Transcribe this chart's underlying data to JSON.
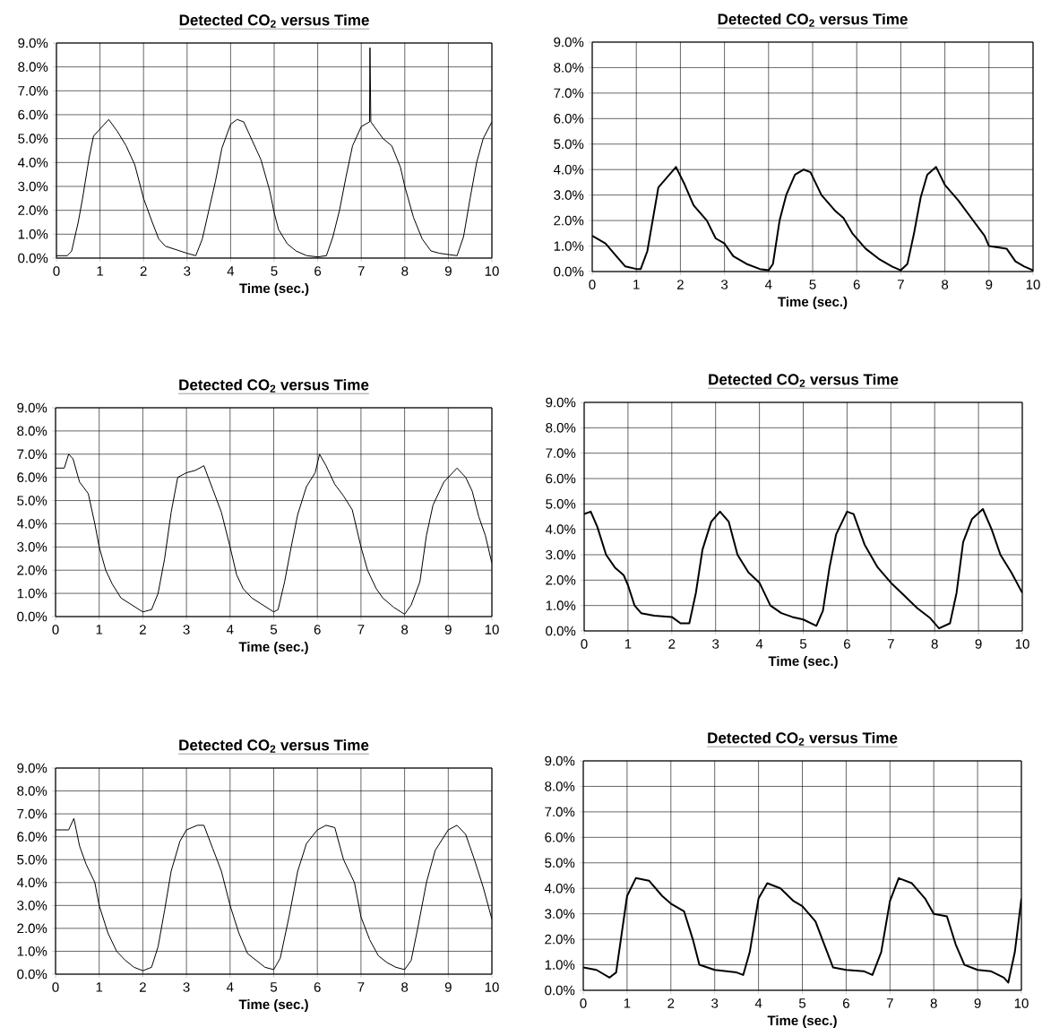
{
  "chart_data": [
    {
      "type": "line",
      "title": "Detected CO$_{2}$ versus Time",
      "xlabel": "Time (sec.)",
      "xlim": [
        0,
        10
      ],
      "ylim": [
        0,
        9
      ],
      "xticks": [
        0,
        1,
        2,
        3,
        4,
        5,
        6,
        7,
        8,
        9,
        10
      ],
      "yticks": [
        {
          "value": 0,
          "label": "0.0%"
        },
        {
          "value": 1,
          "label": "1.0%"
        },
        {
          "value": 2,
          "label": "2.0%"
        },
        {
          "value": 3,
          "label": "3.0%"
        },
        {
          "value": 4,
          "label": "4.0%"
        },
        {
          "value": 5,
          "label": "5.0%"
        },
        {
          "value": 6,
          "label": "6.0%"
        },
        {
          "value": 7,
          "label": "7.0%"
        },
        {
          "value": 8,
          "label": "8.0%"
        },
        {
          "value": 9,
          "label": "9.0%"
        }
      ],
      "grid": true,
      "x": [
        0,
        0.25,
        0.35,
        0.5,
        0.6,
        0.75,
        0.85,
        1,
        1.2,
        1.4,
        1.6,
        1.8,
        2,
        2.2,
        2.35,
        2.5,
        2.75,
        3,
        3.2,
        3.35,
        3.5,
        3.65,
        3.8,
        4,
        4.15,
        4.3,
        4.5,
        4.7,
        4.9,
        5,
        5.1,
        5.3,
        5.5,
        5.75,
        6,
        6.2,
        6.35,
        6.5,
        6.65,
        6.8,
        7,
        7.19,
        7.2,
        7.22,
        7.5,
        7.7,
        7.9,
        8,
        8.2,
        8.4,
        8.6,
        8.8,
        9,
        9.2,
        9.35,
        9.5,
        9.65,
        9.8,
        10
      ],
      "series": [
        {
          "color": "#000000",
          "values": [
            0.1,
            0.1,
            0.3,
            1.5,
            2.5,
            4.2,
            5.1,
            5.4,
            5.8,
            5.3,
            4.7,
            3.9,
            2.5,
            1.5,
            0.8,
            0.5,
            0.35,
            0.2,
            0.1,
            0.8,
            2,
            3.2,
            4.6,
            5.6,
            5.8,
            5.7,
            4.9,
            4.1,
            2.8,
            1.9,
            1.2,
            0.6,
            0.3,
            0.1,
            0.05,
            0.1,
            0.9,
            2,
            3.4,
            4.7,
            5.5,
            5.7,
            8.8,
            5.7,
            5,
            4.7,
            3.8,
            3,
            1.7,
            0.8,
            0.3,
            0.2,
            0.15,
            0.1,
            0.9,
            2.5,
            4,
            5,
            5.7
          ]
        }
      ]
    },
    {
      "type": "line",
      "title": "Detected CO$_{2}$ versus Time",
      "xlabel": "Time (sec.)",
      "xlim": [
        0,
        10
      ],
      "ylim": [
        0,
        9
      ],
      "xticks": [
        0,
        1,
        2,
        3,
        4,
        5,
        6,
        7,
        8,
        9,
        10
      ],
      "yticks": [
        {
          "value": 0,
          "label": "0.0%"
        },
        {
          "value": 1,
          "label": "1.0%"
        },
        {
          "value": 2,
          "label": "2.0%"
        },
        {
          "value": 3,
          "label": "3.0%"
        },
        {
          "value": 4,
          "label": "4.0%"
        },
        {
          "value": 5,
          "label": "5.0%"
        },
        {
          "value": 6,
          "label": "6.0%"
        },
        {
          "value": 7,
          "label": "7.0%"
        },
        {
          "value": 8,
          "label": "8.0%"
        },
        {
          "value": 9,
          "label": "9.0%"
        }
      ],
      "grid": true,
      "x": [
        0,
        0.3,
        0.5,
        0.75,
        1,
        1.1,
        1.25,
        1.4,
        1.5,
        1.7,
        1.9,
        2.1,
        2.3,
        2.6,
        2.8,
        3,
        3.2,
        3.5,
        3.8,
        4,
        4.1,
        4.25,
        4.4,
        4.6,
        4.8,
        4.95,
        5.2,
        5.5,
        5.7,
        5.9,
        6.2,
        6.5,
        6.8,
        7,
        7.15,
        7.3,
        7.45,
        7.6,
        7.8,
        8,
        8.3,
        8.6,
        8.9,
        9,
        9.4,
        9.6,
        9.8,
        10
      ],
      "series": [
        {
          "color": "#000000",
          "values": [
            1.4,
            1.1,
            0.7,
            0.2,
            0.1,
            0.1,
            0.8,
            2.3,
            3.3,
            3.7,
            4.1,
            3.4,
            2.6,
            2,
            1.3,
            1.1,
            0.6,
            0.3,
            0.1,
            0.05,
            0.3,
            2,
            3,
            3.8,
            4,
            3.9,
            3,
            2.4,
            2.1,
            1.5,
            0.9,
            0.5,
            0.2,
            0.05,
            0.3,
            1.5,
            2.9,
            3.8,
            4.1,
            3.4,
            2.8,
            2.1,
            1.4,
            1,
            0.9,
            0.4,
            0.2,
            0.05
          ]
        }
      ]
    },
    {
      "type": "line",
      "title": "Detected CO$_{2}$ versus Time",
      "xlabel": "Time (sec.)",
      "xlim": [
        0,
        10
      ],
      "ylim": [
        0,
        9
      ],
      "xticks": [
        0,
        1,
        2,
        3,
        4,
        5,
        6,
        7,
        8,
        9,
        10
      ],
      "yticks": [
        {
          "value": 0,
          "label": "0.0%"
        },
        {
          "value": 1,
          "label": "1.0%"
        },
        {
          "value": 2,
          "label": "2.0%"
        },
        {
          "value": 3,
          "label": "3.0%"
        },
        {
          "value": 4,
          "label": "4.0%"
        },
        {
          "value": 5,
          "label": "5.0%"
        },
        {
          "value": 6,
          "label": "6.0%"
        },
        {
          "value": 7,
          "label": "7.0%"
        },
        {
          "value": 8,
          "label": "8.0%"
        },
        {
          "value": 9,
          "label": "9.0%"
        }
      ],
      "grid": true,
      "x": [
        0,
        0.2,
        0.3,
        0.4,
        0.55,
        0.75,
        0.9,
        1,
        1.15,
        1.3,
        1.5,
        1.75,
        2,
        2.2,
        2.35,
        2.5,
        2.65,
        2.8,
        3,
        3.2,
        3.4,
        3.6,
        3.8,
        4,
        4.15,
        4.3,
        4.5,
        4.75,
        5,
        5.1,
        5.25,
        5.4,
        5.55,
        5.75,
        5.95,
        6.05,
        6.2,
        6.4,
        6.6,
        6.8,
        7,
        7.15,
        7.35,
        7.5,
        7.75,
        8,
        8.15,
        8.35,
        8.5,
        8.65,
        8.9,
        9.2,
        9.4,
        9.55,
        9.7,
        9.85,
        10
      ],
      "series": [
        {
          "color": "#000000",
          "values": [
            6.4,
            6.4,
            7,
            6.8,
            5.8,
            5.3,
            4,
            3,
            2,
            1.4,
            0.8,
            0.5,
            0.2,
            0.3,
            1,
            2.5,
            4.5,
            6,
            6.2,
            6.3,
            6.5,
            5.5,
            4.5,
            3,
            1.8,
            1.2,
            0.8,
            0.5,
            0.2,
            0.3,
            1.5,
            3,
            4.4,
            5.6,
            6.2,
            7,
            6.5,
            5.7,
            5.2,
            4.6,
            3,
            2,
            1.2,
            0.8,
            0.4,
            0.1,
            0.5,
            1.5,
            3.5,
            4.8,
            5.8,
            6.4,
            6,
            5.4,
            4.3,
            3.5,
            2.3
          ]
        }
      ]
    },
    {
      "type": "line",
      "title": "Detected CO$_{2}$ versus Time",
      "xlabel": "Time (sec.)",
      "xlim": [
        0,
        10
      ],
      "ylim": [
        0,
        9
      ],
      "xticks": [
        0,
        1,
        2,
        3,
        4,
        5,
        6,
        7,
        8,
        9,
        10
      ],
      "yticks": [
        {
          "value": 0,
          "label": "0.0%"
        },
        {
          "value": 1,
          "label": "1.0%"
        },
        {
          "value": 2,
          "label": "2.0%"
        },
        {
          "value": 3,
          "label": "3.0%"
        },
        {
          "value": 4,
          "label": "4.0%"
        },
        {
          "value": 5,
          "label": "5.0%"
        },
        {
          "value": 6,
          "label": "6.0%"
        },
        {
          "value": 7,
          "label": "7.0%"
        },
        {
          "value": 8,
          "label": "8.0%"
        },
        {
          "value": 9,
          "label": "9.0%"
        }
      ],
      "grid": true,
      "x": [
        0,
        0.15,
        0.3,
        0.5,
        0.7,
        0.9,
        1,
        1.15,
        1.3,
        1.6,
        2,
        2.2,
        2.4,
        2.55,
        2.7,
        2.9,
        3.1,
        3.3,
        3.5,
        3.75,
        4,
        4.25,
        4.5,
        4.75,
        5,
        5.3,
        5.45,
        5.6,
        5.75,
        6,
        6.15,
        6.4,
        6.7,
        7,
        7.3,
        7.6,
        7.9,
        8.1,
        8.35,
        8.5,
        8.65,
        8.85,
        9.1,
        9.3,
        9.5,
        9.75,
        10
      ],
      "series": [
        {
          "color": "#000000",
          "values": [
            4.6,
            4.7,
            4.1,
            3,
            2.5,
            2.2,
            1.8,
            1,
            0.7,
            0.6,
            0.55,
            0.3,
            0.3,
            1.5,
            3.2,
            4.3,
            4.7,
            4.3,
            3,
            2.3,
            1.9,
            1,
            0.7,
            0.55,
            0.45,
            0.2,
            0.8,
            2.5,
            3.8,
            4.7,
            4.6,
            3.4,
            2.5,
            1.9,
            1.4,
            0.9,
            0.5,
            0.1,
            0.3,
            1.5,
            3.5,
            4.4,
            4.8,
            4,
            3,
            2.3,
            1.5
          ]
        }
      ]
    },
    {
      "type": "line",
      "title": "Detected CO$_{2}$ versus Time",
      "xlabel": "Time (sec.)",
      "xlim": [
        0,
        10
      ],
      "ylim": [
        0,
        9
      ],
      "xticks": [
        0,
        1,
        2,
        3,
        4,
        5,
        6,
        7,
        8,
        9,
        10
      ],
      "yticks": [
        {
          "value": 0,
          "label": "0.0%"
        },
        {
          "value": 1,
          "label": "1.0%"
        },
        {
          "value": 2,
          "label": "2.0%"
        },
        {
          "value": 3,
          "label": "3.0%"
        },
        {
          "value": 4,
          "label": "4.0%"
        },
        {
          "value": 5,
          "label": "5.0%"
        },
        {
          "value": 6,
          "label": "6.0%"
        },
        {
          "value": 7,
          "label": "7.0%"
        },
        {
          "value": 8,
          "label": "8.0%"
        },
        {
          "value": 9,
          "label": "9.0%"
        }
      ],
      "grid": true,
      "x": [
        0,
        0.3,
        0.42,
        0.55,
        0.7,
        0.9,
        1,
        1.2,
        1.4,
        1.6,
        1.8,
        2,
        2.2,
        2.35,
        2.5,
        2.65,
        2.85,
        3,
        3.25,
        3.4,
        3.6,
        3.8,
        4,
        4.2,
        4.4,
        4.6,
        4.8,
        5,
        5.15,
        5.35,
        5.55,
        5.75,
        6,
        6.2,
        6.4,
        6.6,
        6.85,
        7,
        7.2,
        7.4,
        7.6,
        7.8,
        8,
        8.15,
        8.3,
        8.5,
        8.7,
        9,
        9.2,
        9.4,
        9.6,
        9.8,
        10
      ],
      "series": [
        {
          "color": "#000000",
          "values": [
            6.3,
            6.3,
            6.8,
            5.6,
            4.8,
            4,
            3,
            1.8,
            1,
            0.6,
            0.3,
            0.15,
            0.3,
            1.2,
            2.8,
            4.5,
            5.8,
            6.3,
            6.5,
            6.5,
            5.5,
            4.5,
            3,
            1.8,
            0.9,
            0.6,
            0.3,
            0.2,
            0.7,
            2.5,
            4.5,
            5.7,
            6.3,
            6.5,
            6.4,
            5,
            4,
            2.5,
            1.5,
            0.8,
            0.5,
            0.3,
            0.2,
            0.6,
            2,
            4,
            5.4,
            6.3,
            6.5,
            6.1,
            5,
            3.8,
            2.4
          ]
        }
      ]
    },
    {
      "type": "line",
      "title": "Detected CO$_{2}$ versus Time",
      "xlabel": "Time (sec.)",
      "xlim": [
        0,
        10
      ],
      "ylim": [
        0,
        9
      ],
      "xticks": [
        0,
        1,
        2,
        3,
        4,
        5,
        6,
        7,
        8,
        9,
        10
      ],
      "yticks": [
        {
          "value": 0,
          "label": "0.0%"
        },
        {
          "value": 1,
          "label": "1.0%"
        },
        {
          "value": 2,
          "label": "2.0%"
        },
        {
          "value": 3,
          "label": "3.0%"
        },
        {
          "value": 4,
          "label": "4.0%"
        },
        {
          "value": 5,
          "label": "5.0%"
        },
        {
          "value": 6,
          "label": "6.0%"
        },
        {
          "value": 7,
          "label": "7.0%"
        },
        {
          "value": 8,
          "label": "8.0%"
        },
        {
          "value": 9,
          "label": "9.0%"
        }
      ],
      "grid": true,
      "x": [
        0,
        0.3,
        0.6,
        0.75,
        0.9,
        1,
        1.2,
        1.5,
        1.8,
        2,
        2.3,
        2.5,
        2.65,
        3,
        3.5,
        3.65,
        3.8,
        4,
        4.2,
        4.5,
        4.8,
        5,
        5.3,
        5.5,
        5.7,
        6,
        6.4,
        6.6,
        6.8,
        7,
        7.2,
        7.5,
        7.8,
        8,
        8.3,
        8.5,
        8.7,
        9,
        9.3,
        9.6,
        9.7,
        9.85,
        10
      ],
      "series": [
        {
          "color": "#000000",
          "values": [
            0.9,
            0.8,
            0.5,
            0.7,
            2.5,
            3.7,
            4.4,
            4.3,
            3.7,
            3.4,
            3.1,
            2,
            1,
            0.8,
            0.7,
            0.6,
            1.5,
            3.6,
            4.2,
            4,
            3.5,
            3.3,
            2.7,
            1.8,
            0.9,
            0.8,
            0.75,
            0.6,
            1.5,
            3.5,
            4.4,
            4.2,
            3.6,
            3,
            2.9,
            1.8,
            1,
            0.8,
            0.75,
            0.5,
            0.3,
            1.5,
            3.6
          ]
        }
      ]
    }
  ]
}
